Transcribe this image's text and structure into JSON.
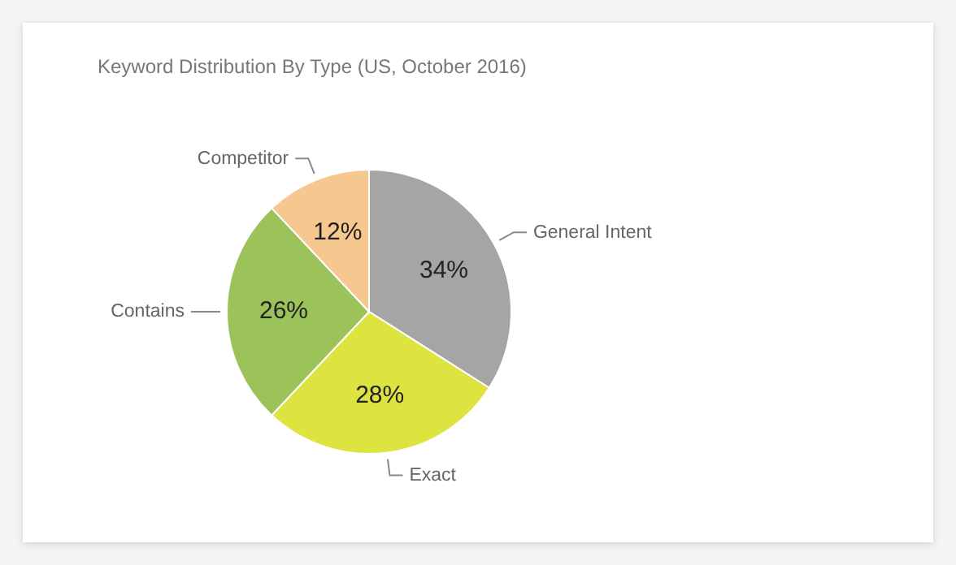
{
  "chart_data": {
    "type": "pie",
    "title": "Keyword Distribution By Type (US, October 2016)",
    "categories": [
      "General Intent",
      "Exact",
      "Contains",
      "Competitor"
    ],
    "values": [
      34,
      28,
      26,
      12
    ],
    "value_labels": [
      "34%",
      "28%",
      "26%",
      "12%"
    ],
    "colors": [
      "#a5a5a5",
      "#dde43f",
      "#9cc25a",
      "#f6c88f"
    ],
    "legend": false
  }
}
